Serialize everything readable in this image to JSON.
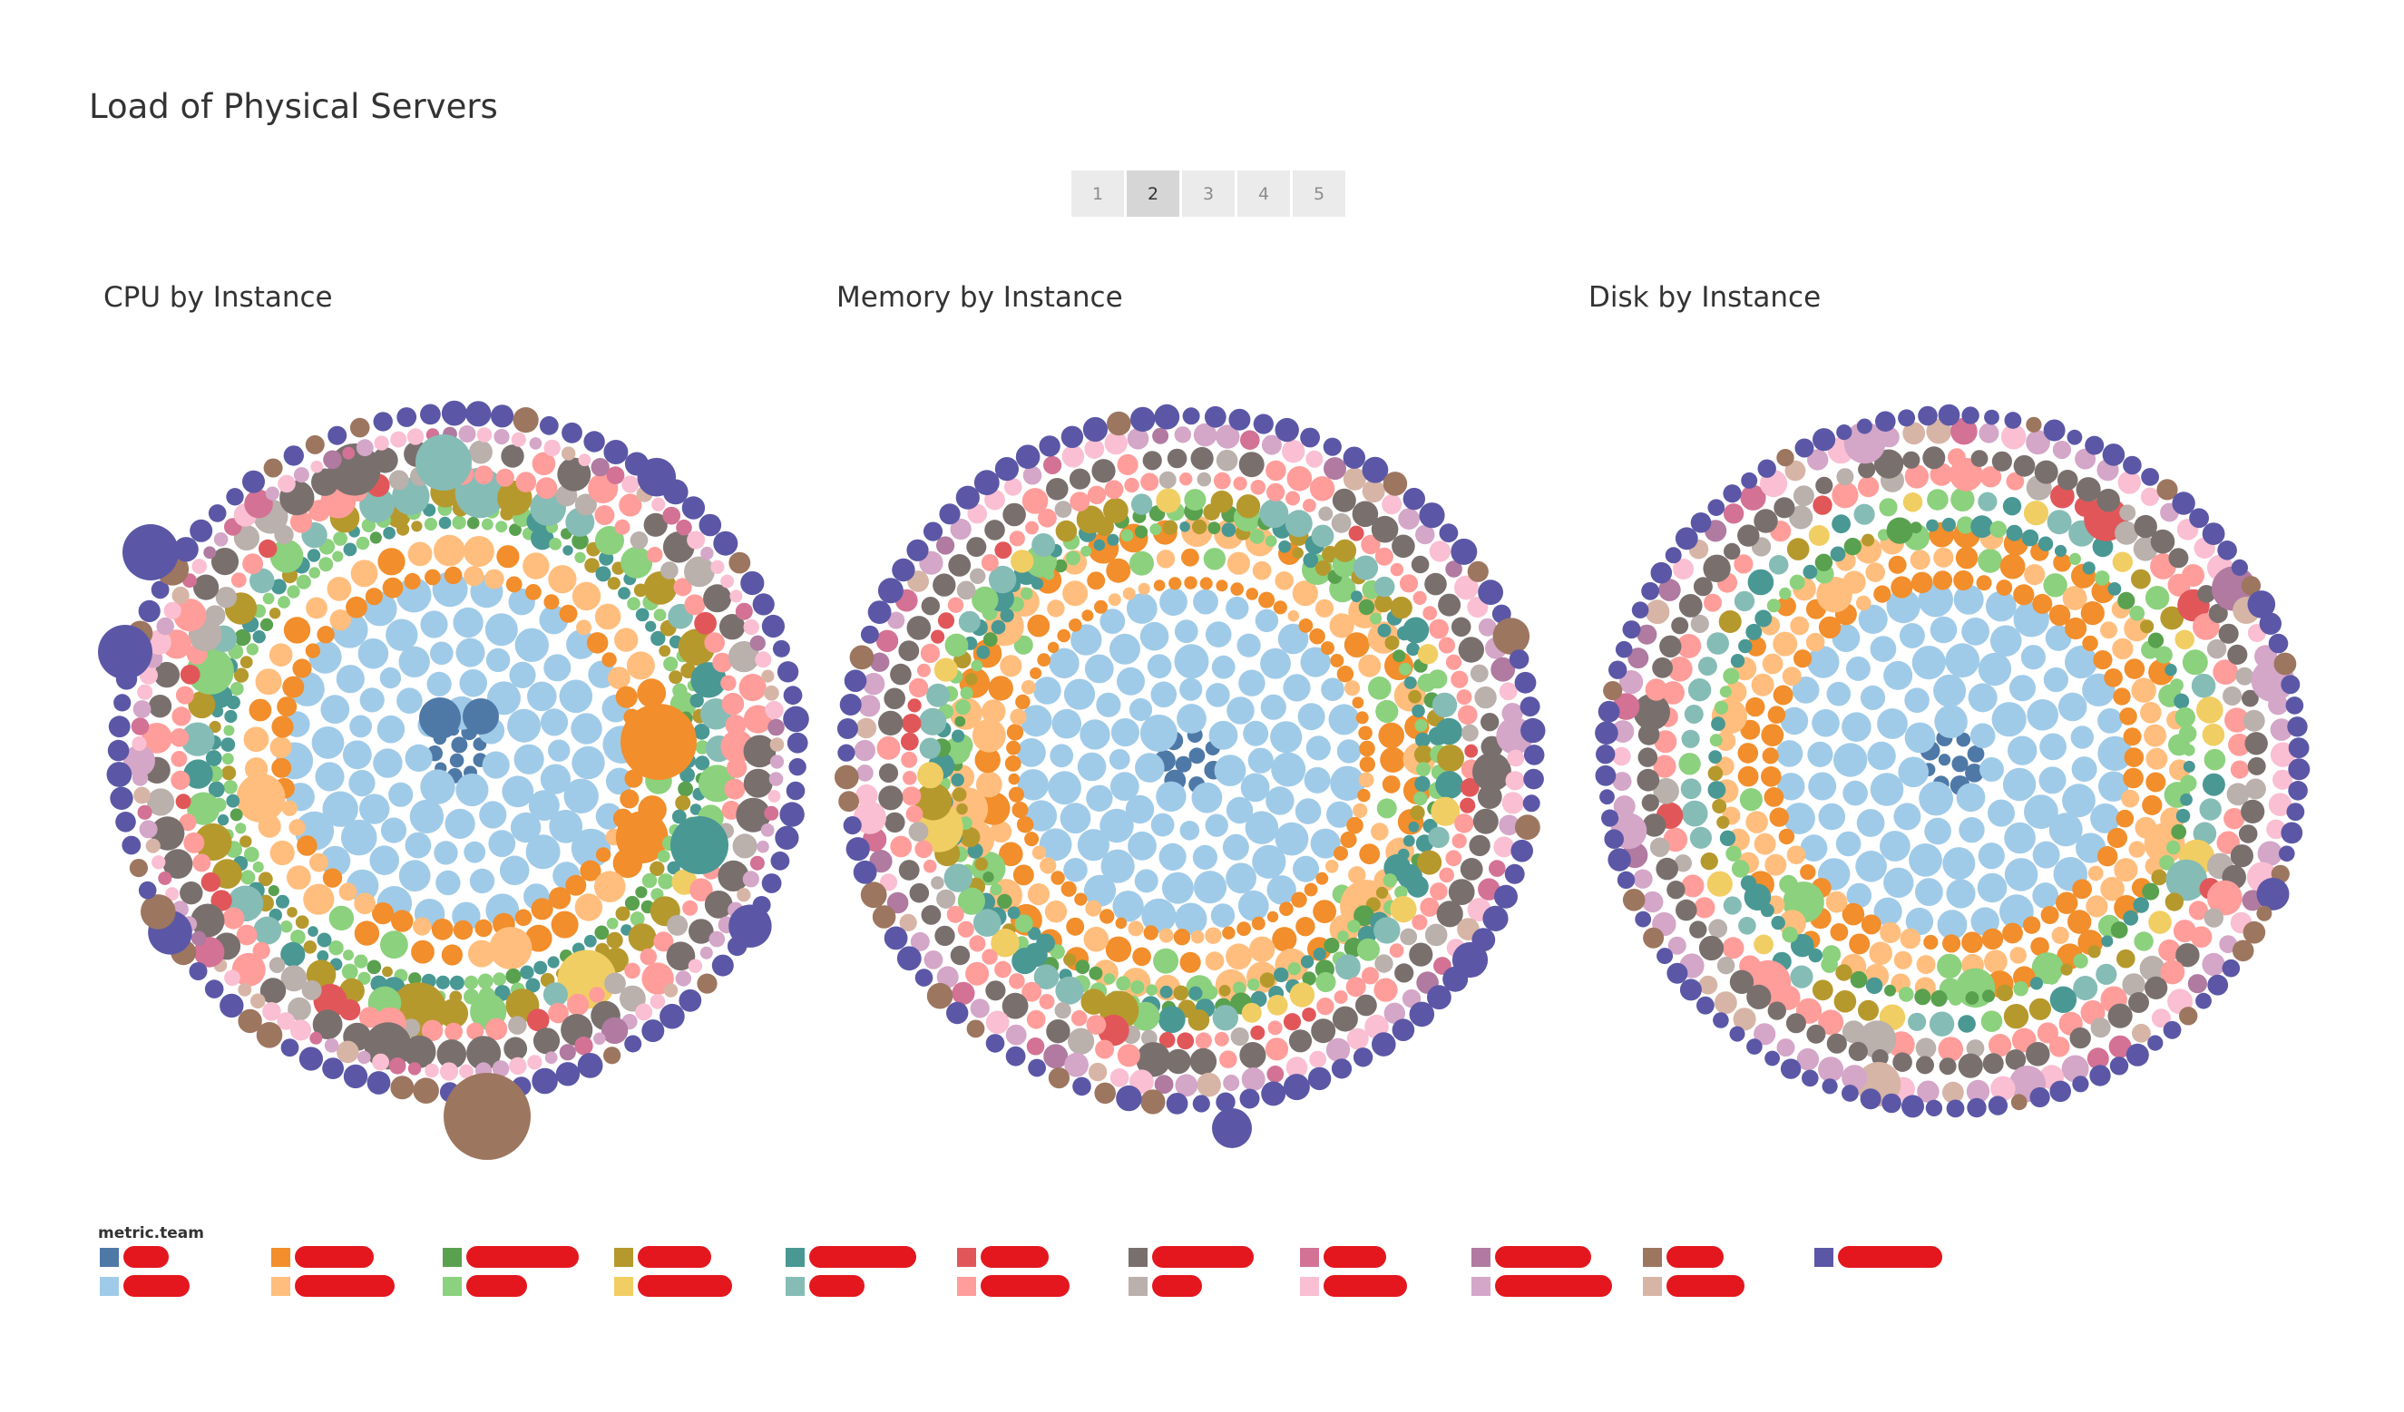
{
  "title": "Load of Physical Servers",
  "pager": {
    "pages": [
      "1",
      "2",
      "3",
      "4",
      "5"
    ],
    "active": "2"
  },
  "colors": {
    "dark_blue": "#4e79a7",
    "light_blue": "#a0cbe8",
    "orange": "#f28e2b",
    "light_orange": "#ffbe7d",
    "green": "#59a14f",
    "light_green": "#8cd17d",
    "olive": "#b6992d",
    "yellow": "#f1ce63",
    "teal": "#499894",
    "light_teal": "#86bcb6",
    "red": "#e15759",
    "pink_salmon": "#ff9d9a",
    "gray": "#79706e",
    "light_gray": "#bab0ac",
    "rose": "#d37295",
    "light_pink": "#fabfd2",
    "mauve": "#b07aa1",
    "light_mauve": "#d4a6c8",
    "brown": "#9d7660",
    "light_brown": "#d7b5a6",
    "indigo": "#5b57a6"
  },
  "chart_data": [
    {
      "type": "packed-bubble",
      "title": "CPU by Instance"
    },
    {
      "type": "packed-bubble",
      "title": "Memory by Instance"
    },
    {
      "type": "packed-bubble",
      "title": "Disk by Instance"
    }
  ],
  "legend": {
    "title": "metric.team",
    "pairs": [
      [
        "dark_blue",
        "light_blue"
      ],
      [
        "orange",
        "light_orange"
      ],
      [
        "green",
        "light_green"
      ],
      [
        "olive",
        "yellow"
      ],
      [
        "teal",
        "light_teal"
      ],
      [
        "red",
        "pink_salmon"
      ],
      [
        "gray",
        "light_gray"
      ],
      [
        "rose",
        "light_pink"
      ],
      [
        "mauve",
        "light_mauve"
      ],
      [
        "brown",
        "light_brown"
      ],
      [
        "indigo"
      ]
    ]
  }
}
